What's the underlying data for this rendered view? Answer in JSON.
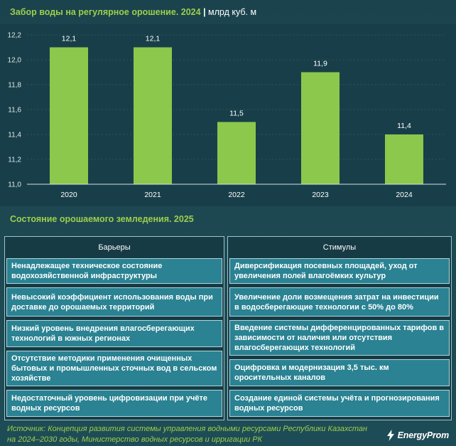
{
  "header": {
    "separator": "|"
  },
  "chart_data": {
    "type": "bar",
    "title": "Забор воды на регулярное орошение. 2024",
    "unit": "млрд куб. м",
    "categories": [
      "2020",
      "2021",
      "2022",
      "2023",
      "2024"
    ],
    "values": [
      12.1,
      12.1,
      11.5,
      11.9,
      11.4
    ],
    "value_labels": [
      "12,1",
      "12,1",
      "11,5",
      "11,9",
      "11,4"
    ],
    "ylim": [
      11.0,
      12.2
    ],
    "yticks": [
      11.0,
      11.2,
      11.4,
      11.6,
      11.8,
      12.0,
      12.2
    ],
    "ytick_labels": [
      "11,0",
      "11,2",
      "11,4",
      "11,6",
      "11,8",
      "12,0",
      "12,2"
    ],
    "grid": true
  },
  "section": {
    "title": "Состояние орошаемого земледения. 2025"
  },
  "barriers": {
    "label": "Барьеры",
    "items": [
      "Ненадлежащее техническое состояние\nводохозяйственной инфраструктуры",
      "Невысокий коэффициент использования воды при\nдоставке до орошаемых территорий",
      "Низкий уровень внедрения влагосберегающих\nтехнологий в южных регионах",
      "Отсутствие методики применения очищенных\nбытовых и промышленных сточных вод в сельском\nхозяйстве",
      "Недостаточный уровень цифровизации при учёте\nводных ресурсов"
    ]
  },
  "stimuli": {
    "label": "Стимулы",
    "items": [
      "Диверсификация посевных площадей, уход от\nувеличения полей влагоёмких культур",
      "Увеличение доли возмещения затрат на инвестиции\nв водосберегающие технологии с 50% до 80%",
      "Введение системы дифференцированных тарифов в\nзависимости от наличия или отсутствия\nвлагосберегающих технологий",
      "Оцифровка и модернизация 3,5 тыс. км\nоросительных каналов",
      "Создание единой системы учёта и прогнозирования\nводных ресурсов"
    ]
  },
  "footer": {
    "source": "Источник: Концепция развития системы управления водными ресурсами Республики Казахстан\nна 2024–2030 годы, Министерство водных ресурсов и ирригации РК"
  },
  "logo": {
    "text": "EnergyProm",
    "icon": "lightning-bolt-icon"
  },
  "colors": {
    "accent": "#9dcf4c",
    "bar": "#8cc84b",
    "item_fill": "#2a8292",
    "panel": "#183f49"
  }
}
